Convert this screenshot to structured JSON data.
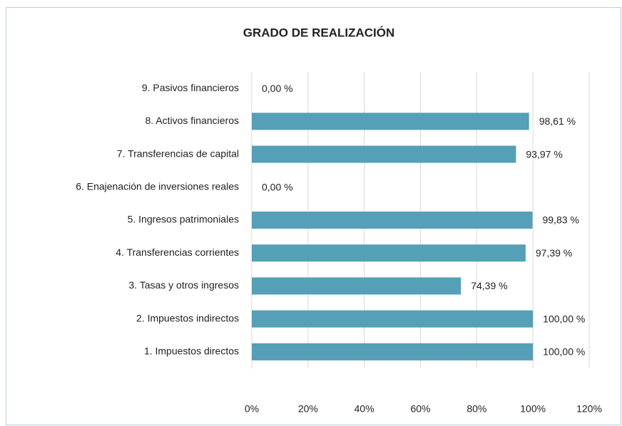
{
  "chart_data": {
    "type": "hbar",
    "title": "GRADO DE REALIZACIÓN",
    "categories": [
      "9. Pasivos financieros",
      "8. Activos financieros",
      "7. Transferencias de capital",
      "6. Enajenación de inversiones reales",
      "5. Ingresos patrimoniales",
      "4. Transferencias corrientes",
      "3. Tasas y otros ingresos",
      "2. Impuestos indirectos",
      "1. Impuestos directos"
    ],
    "values": [
      0,
      98.61,
      93.97,
      0,
      99.83,
      97.39,
      74.39,
      100,
      100
    ],
    "value_labels": [
      "0,00 %",
      "98,61 %",
      "93,97 %",
      "0,00 %",
      "99,83 %",
      "97,39 %",
      "74,39 %",
      "100,00 %",
      "100,00 %"
    ],
    "color": "#559fb7",
    "xlim": [
      0,
      120
    ],
    "xticks": [
      {
        "value": 0,
        "label": "0%"
      },
      {
        "value": 20,
        "label": "20%"
      },
      {
        "value": 40,
        "label": "40%"
      },
      {
        "value": 60,
        "label": "60%"
      },
      {
        "value": 80,
        "label": "80%"
      },
      {
        "value": 100,
        "label": "100%"
      },
      {
        "value": 120,
        "label": "120%"
      }
    ],
    "grid": true
  }
}
